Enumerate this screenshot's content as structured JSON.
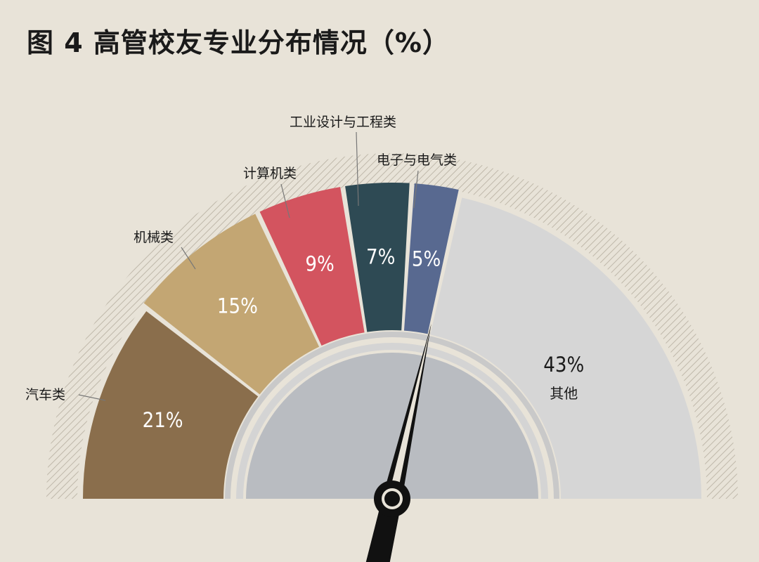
{
  "title": "图 4  高管校友专业分布情况（%）",
  "chart_data": {
    "type": "pie",
    "subtype": "semicircle-gauge",
    "categories": [
      "汽车类",
      "机械类",
      "计算机类",
      "工业设计与工程类",
      "电子与电气类",
      "其他"
    ],
    "values": [
      21,
      15,
      9,
      7,
      5,
      43
    ],
    "value_labels": [
      "21%",
      "15%",
      "9%",
      "7%",
      "5%",
      "43%"
    ],
    "colors": [
      "#8a6e4c",
      "#c3a673",
      "#d3545f",
      "#2e4a54",
      "#586990",
      "#d6d6d6"
    ],
    "hatch_color": "#bfb8aa",
    "inner_color": "#b9bcc1",
    "needle_value": 57,
    "needle_color": "#111111"
  }
}
